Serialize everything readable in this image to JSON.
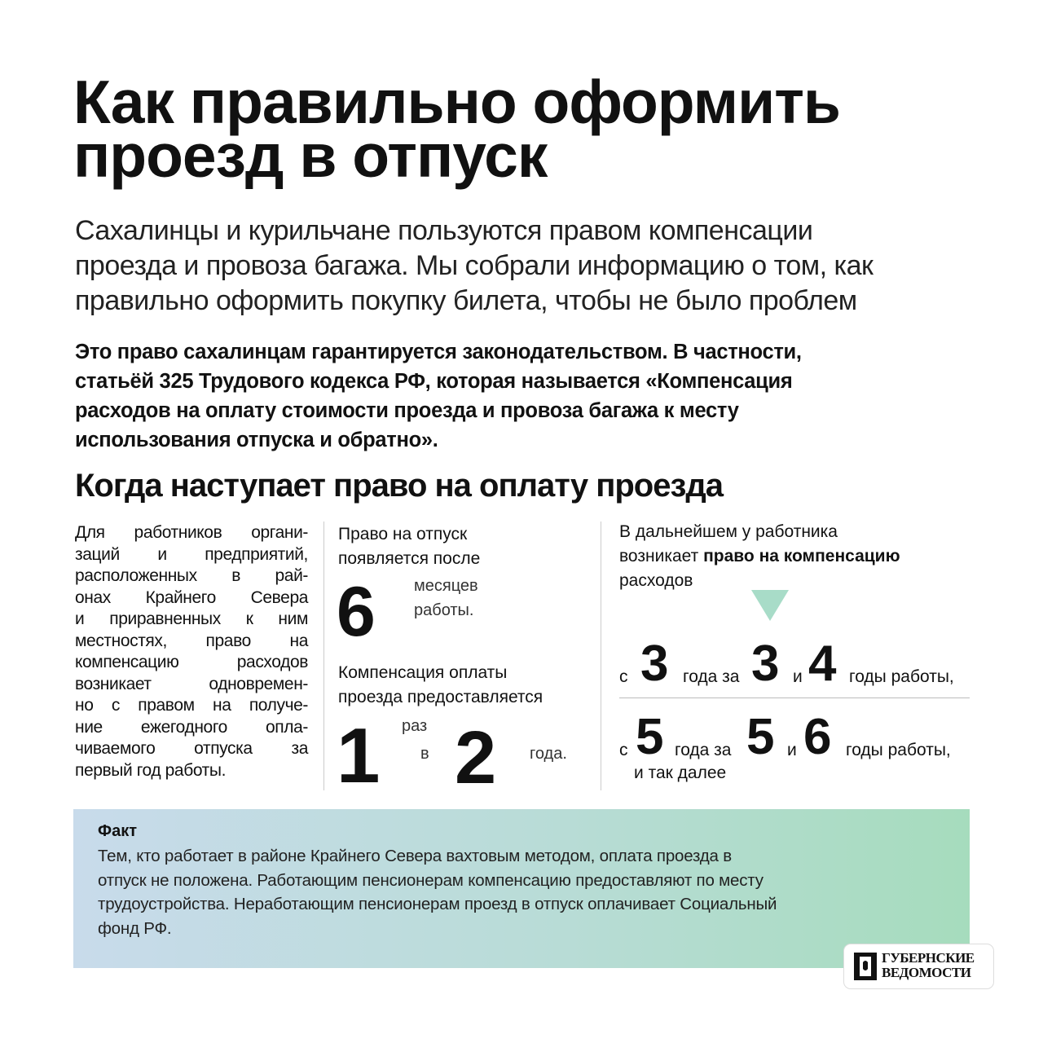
{
  "title_lines": [
    "Как правильно оформить",
    "проезд в отпуск"
  ],
  "lead_lines": [
    "Сахалинцы и курильчане пользуются правом компенсации",
    "проезда и провоза багажа. Мы собрали информацию о том, как",
    "правильно оформить покупку билета, чтобы не было проблем"
  ],
  "law_lines": [
    "Это право сахалинцам гарантируется законодательством. В частности,",
    "статьёй 325 Трудового кодекса РФ, которая называется «Компенсация",
    "расходов на оплату стоимости проезда и провоза багажа к месту",
    "использования отпуска и обратно»."
  ],
  "section_title": "Когда наступает право на оплату проезда",
  "left_lines": [
    "Для работников органи-",
    "заций и предприятий,",
    "расположенных в рай-",
    "онах Крайнего Севера",
    "и приравненных к ним",
    "местностях, право на",
    "компенсацию расходов",
    "возникает одновремен-",
    "но с правом на получе-",
    "ние ежегодного опла-",
    "чиваемого отпуска за",
    "первый год работы."
  ],
  "middle": {
    "vacation_l1": "Право на отпуск",
    "vacation_l2": "появляется после",
    "months_num": "6",
    "months_l1": "месяцев",
    "months_l2": "работы.",
    "comp_l1": "Компенсация оплаты",
    "comp_l2": "проезда предоставляется",
    "times_num": "1",
    "times_word": "раз",
    "in_word": "в",
    "years_num": "2",
    "years_word": "года."
  },
  "right": {
    "intro_l1": "В дальнейшем у работника",
    "intro_l2_pre": "возникает ",
    "intro_l2_bold": "право на компенсацию",
    "intro_l3": "расходов",
    "arrow_color": "#a8dcc8",
    "row1": {
      "from": "с",
      "n1": "3",
      "mid": "года за",
      "n2": "3",
      "and": "и",
      "n3": "4",
      "tail": "годы работы,"
    },
    "row2": {
      "from": "с",
      "n1": "5",
      "mid": "года за",
      "n2": "5",
      "and": "и",
      "n3": "6",
      "tail": "годы работы,",
      "extra": "и так далее"
    }
  },
  "fact": {
    "title": "Факт",
    "lines": [
      "Тем, кто работает в районе Крайнего Севера вахтовым методом, оплата проезда в",
      "отпуск не положена. Работающим пенсионерам компенсацию предоставляют по месту",
      "трудоустройства. Неработающим пенсионерам проезд в отпуск оплачивает Социальный",
      "фонд РФ."
    ]
  },
  "logo": {
    "line1": "ГУБЕРНСКИЕ",
    "line2": "ВЕДОМОСТИ"
  }
}
